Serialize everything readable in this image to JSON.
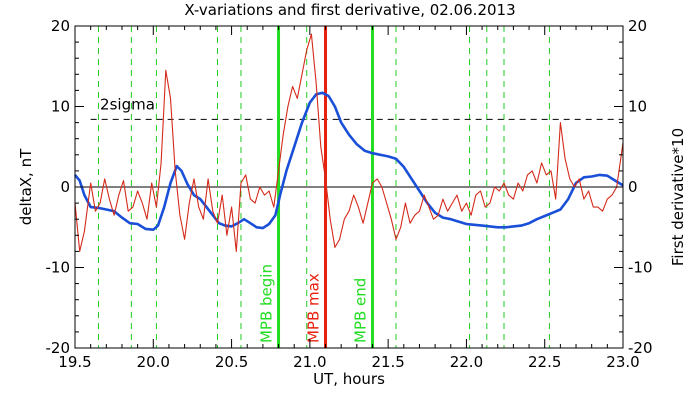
{
  "chart_data": {
    "type": "line",
    "title": "X-variations and first derivative, 02.06.2013",
    "xlabel": "UT, hours",
    "ylabel_left": "deltaX, nT",
    "ylabel_right": "First derivative*10",
    "xlim": [
      19.5,
      23.0
    ],
    "ylim": [
      -20,
      20
    ],
    "xticks": [
      "19.5",
      "20.0",
      "20.5",
      "21.0",
      "21.5",
      "22.0",
      "22.5",
      "23.0"
    ],
    "xtick_values": [
      19.5,
      20.0,
      20.5,
      21.0,
      21.5,
      22.0,
      22.5,
      23.0
    ],
    "yticks": [
      "20",
      "10",
      "0",
      "-10",
      "-20"
    ],
    "ytick_values": [
      20,
      10,
      0,
      -10,
      -20
    ],
    "colors": {
      "deltaX": "#1a4fd8",
      "derivative": "#d42a1a",
      "mpb_edges": "#22dd22",
      "mpb_max": "#e8210e",
      "dashed_green": "#22cc22",
      "sigma_line": "#000000"
    },
    "sigma_level": 8.4,
    "sigma_label": "2sigma",
    "vertical_markers": [
      {
        "x": 20.8,
        "label": "MPB begin",
        "kind": "edge"
      },
      {
        "x": 21.1,
        "label": "MPB max",
        "kind": "max"
      },
      {
        "x": 21.4,
        "label": "MPB end",
        "kind": "edge"
      }
    ],
    "dashed_lines_x": [
      19.65,
      19.86,
      20.02,
      20.41,
      20.56,
      20.98,
      21.55,
      22.02,
      22.13,
      22.24,
      22.53
    ],
    "series": [
      {
        "key": "deltaX",
        "x": [
          19.5,
          19.53,
          19.56,
          19.6,
          19.65,
          19.7,
          19.75,
          19.8,
          19.85,
          19.9,
          19.95,
          20.0,
          20.03,
          20.07,
          20.11,
          20.15,
          20.18,
          20.22,
          20.26,
          20.3,
          20.34,
          20.38,
          20.42,
          20.46,
          20.5,
          20.54,
          20.58,
          20.62,
          20.66,
          20.7,
          20.74,
          20.78,
          20.81,
          20.85,
          20.9,
          20.95,
          21.0,
          21.04,
          21.08,
          21.12,
          21.16,
          21.2,
          21.25,
          21.3,
          21.35,
          21.4,
          21.45,
          21.5,
          21.55,
          21.6,
          21.65,
          21.7,
          21.75,
          21.8,
          21.85,
          21.9,
          21.95,
          22.0,
          22.05,
          22.1,
          22.15,
          22.2,
          22.25,
          22.3,
          22.35,
          22.4,
          22.45,
          22.5,
          22.55,
          22.6,
          22.65,
          22.7,
          22.75,
          22.8,
          22.85,
          22.9,
          22.95,
          23.0
        ],
        "values": [
          1.5,
          0.8,
          -1.0,
          -2.5,
          -2.6,
          -2.8,
          -3.0,
          -3.8,
          -4.5,
          -4.6,
          -5.2,
          -5.3,
          -4.8,
          -2.5,
          0.5,
          2.6,
          2.0,
          0.3,
          -1.0,
          -1.5,
          -2.5,
          -3.5,
          -4.5,
          -4.8,
          -4.9,
          -4.5,
          -4.0,
          -4.5,
          -5.0,
          -5.1,
          -4.6,
          -3.5,
          -1.0,
          2.0,
          5.0,
          8.0,
          10.5,
          11.5,
          11.7,
          11.3,
          10.0,
          8.0,
          6.5,
          5.3,
          4.5,
          4.2,
          4.0,
          3.8,
          3.5,
          2.5,
          1.0,
          -0.5,
          -2.0,
          -3.2,
          -3.8,
          -4.0,
          -4.3,
          -4.6,
          -4.7,
          -4.8,
          -4.9,
          -5.0,
          -5.0,
          -4.9,
          -4.8,
          -4.5,
          -4.0,
          -3.6,
          -3.2,
          -2.8,
          -1.5,
          0.5,
          1.2,
          1.3,
          1.5,
          1.4,
          0.8,
          0.2
        ]
      },
      {
        "key": "derivative",
        "x": [
          19.5,
          19.53,
          19.56,
          19.6,
          19.63,
          19.66,
          19.69,
          19.72,
          19.75,
          19.78,
          19.81,
          19.84,
          19.87,
          19.9,
          19.93,
          19.96,
          19.99,
          20.02,
          20.05,
          20.08,
          20.11,
          20.14,
          20.17,
          20.2,
          20.23,
          20.26,
          20.29,
          20.32,
          20.35,
          20.38,
          20.41,
          20.44,
          20.47,
          20.5,
          20.53,
          20.56,
          20.59,
          20.62,
          20.65,
          20.68,
          20.71,
          20.74,
          20.77,
          20.8,
          20.83,
          20.86,
          20.89,
          20.92,
          20.95,
          20.98,
          21.01,
          21.04,
          21.07,
          21.1,
          21.13,
          21.16,
          21.19,
          21.22,
          21.25,
          21.28,
          21.31,
          21.34,
          21.37,
          21.4,
          21.43,
          21.46,
          21.49,
          21.52,
          21.55,
          21.58,
          21.61,
          21.64,
          21.67,
          21.7,
          21.73,
          21.76,
          21.79,
          21.82,
          21.85,
          21.88,
          21.91,
          21.94,
          21.97,
          22.0,
          22.03,
          22.06,
          22.09,
          22.12,
          22.15,
          22.18,
          22.21,
          22.24,
          22.27,
          22.3,
          22.33,
          22.36,
          22.39,
          22.42,
          22.45,
          22.48,
          22.51,
          22.54,
          22.57,
          22.6,
          22.63,
          22.66,
          22.69,
          22.72,
          22.75,
          22.78,
          22.81,
          22.84,
          22.87,
          22.9,
          22.93,
          22.96,
          23.0
        ],
        "values": [
          -2.0,
          -8.0,
          -5.5,
          0.5,
          -3.0,
          -2.0,
          1.0,
          -1.5,
          -3.5,
          -1.0,
          0.8,
          -3.0,
          -2.5,
          -0.5,
          -2.0,
          -4.0,
          0.5,
          -2.5,
          3.0,
          14.5,
          11.0,
          2.0,
          -3.5,
          -6.5,
          -2.0,
          1.0,
          -2.5,
          -4.0,
          1.0,
          -3.0,
          -4.5,
          -1.0,
          -6.0,
          -2.5,
          -8.0,
          0.5,
          1.5,
          -1.5,
          -2.0,
          0.0,
          -1.0,
          -0.5,
          -2.5,
          2.0,
          6.5,
          10.0,
          12.5,
          11.0,
          14.0,
          17.0,
          19.0,
          13.0,
          5.0,
          1.0,
          -4.0,
          -7.5,
          -6.5,
          -4.0,
          -3.0,
          -1.0,
          -2.5,
          -4.5,
          -2.0,
          0.5,
          1.0,
          0.0,
          -2.0,
          -4.0,
          -6.5,
          -5.0,
          -2.0,
          -4.5,
          -3.5,
          -3.0,
          -1.0,
          -2.5,
          -4.0,
          -3.5,
          -1.5,
          -3.0,
          -2.0,
          -1.0,
          -3.0,
          -2.0,
          -3.5,
          -1.0,
          -0.5,
          -2.5,
          -2.0,
          0.0,
          -0.5,
          0.5,
          -1.0,
          -1.5,
          0.5,
          -0.5,
          1.5,
          2.0,
          0.5,
          3.0,
          1.5,
          2.0,
          -1.5,
          8.0,
          3.5,
          1.0,
          0.0,
          1.0,
          -1.5,
          -0.5,
          -2.5,
          -2.5,
          -3.0,
          -1.5,
          -1.0,
          0.0,
          5.5
        ]
      }
    ]
  }
}
